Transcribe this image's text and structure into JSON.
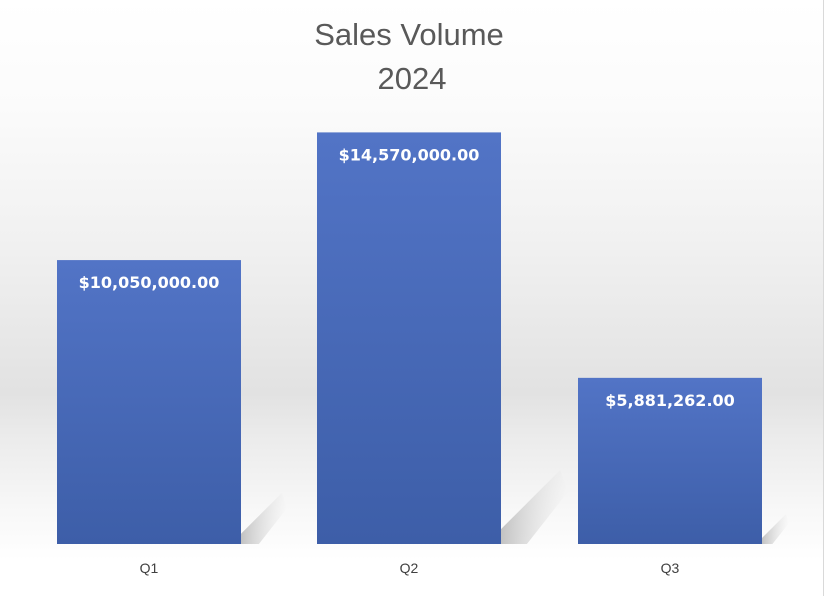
{
  "chart_data": {
    "type": "bar",
    "title": "Sales Volume",
    "subtitle": "2024",
    "categories": [
      "Q1",
      "Q2",
      "Q3"
    ],
    "values": [
      10050000,
      14570000,
      5881262
    ],
    "data_labels": [
      "$10,050,000.00",
      "$14,570,000.00",
      "$5,881,262.00"
    ],
    "xlabel": "",
    "ylabel": "",
    "ylim": [
      0,
      16000000
    ],
    "grid": false,
    "legend": "none",
    "bar_color_top": "#5274c6",
    "bar_color_bottom": "#3d5ea8"
  }
}
